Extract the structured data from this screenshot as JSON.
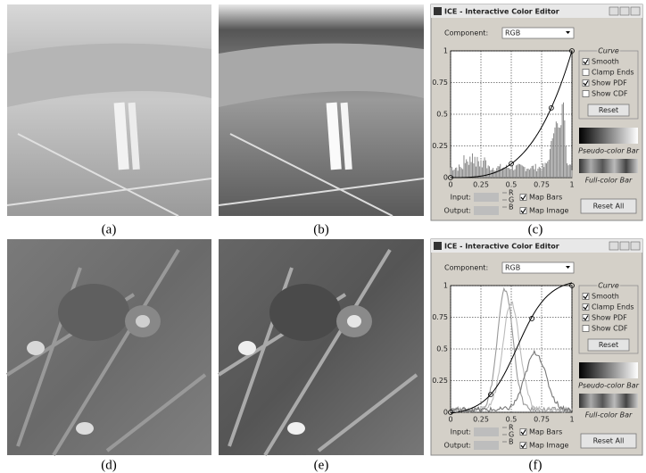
{
  "captions": [
    "(a)",
    "(b)",
    "(c)",
    "(d)",
    "(e)",
    "(f)"
  ],
  "editors": [
    {
      "title": "ICE - Interactive Color Editor",
      "component_label": "Component:",
      "component": "RGB",
      "curve_group": "Curve",
      "checkboxes": [
        {
          "label": "Smooth",
          "checked": true
        },
        {
          "label": "Clamp Ends",
          "checked": false
        },
        {
          "label": "Show PDF",
          "checked": true
        },
        {
          "label": "Show CDF",
          "checked": false
        }
      ],
      "reset": "Reset",
      "pseudo_bar": "Pseudo-color Bar",
      "full_bar": "Full-color Bar",
      "reset_all": "Reset All",
      "input": "Input:",
      "output": "Output:",
      "channels": [
        "R",
        "G",
        "B"
      ],
      "map_bars": {
        "label": "Map Bars",
        "checked": true
      },
      "map_image": {
        "label": "Map Image",
        "checked": true
      },
      "xticks": [
        0,
        0.25,
        0.5,
        0.75,
        1
      ],
      "yticks": [
        0,
        0.25,
        0.5,
        0.75,
        1
      ]
    },
    {
      "title": "ICE - Interactive Color Editor",
      "component_label": "Component:",
      "component": "RGB",
      "curve_group": "Curve",
      "checkboxes": [
        {
          "label": "Smooth",
          "checked": true
        },
        {
          "label": "Clamp Ends",
          "checked": true
        },
        {
          "label": "Show PDF",
          "checked": true
        },
        {
          "label": "Show CDF",
          "checked": false
        }
      ],
      "reset": "Reset",
      "pseudo_bar": "Pseudo-color Bar",
      "full_bar": "Full-color Bar",
      "reset_all": "Reset All",
      "input": "Input:",
      "output": "Output:",
      "channels": [
        "R",
        "G",
        "B"
      ],
      "map_bars": {
        "label": "Map Bars",
        "checked": true
      },
      "map_image": {
        "label": "Map Image",
        "checked": true
      },
      "xticks": [
        0,
        0.25,
        0.5,
        0.75,
        1
      ],
      "yticks": [
        0,
        0.25,
        0.5,
        0.75,
        1
      ]
    }
  ]
}
